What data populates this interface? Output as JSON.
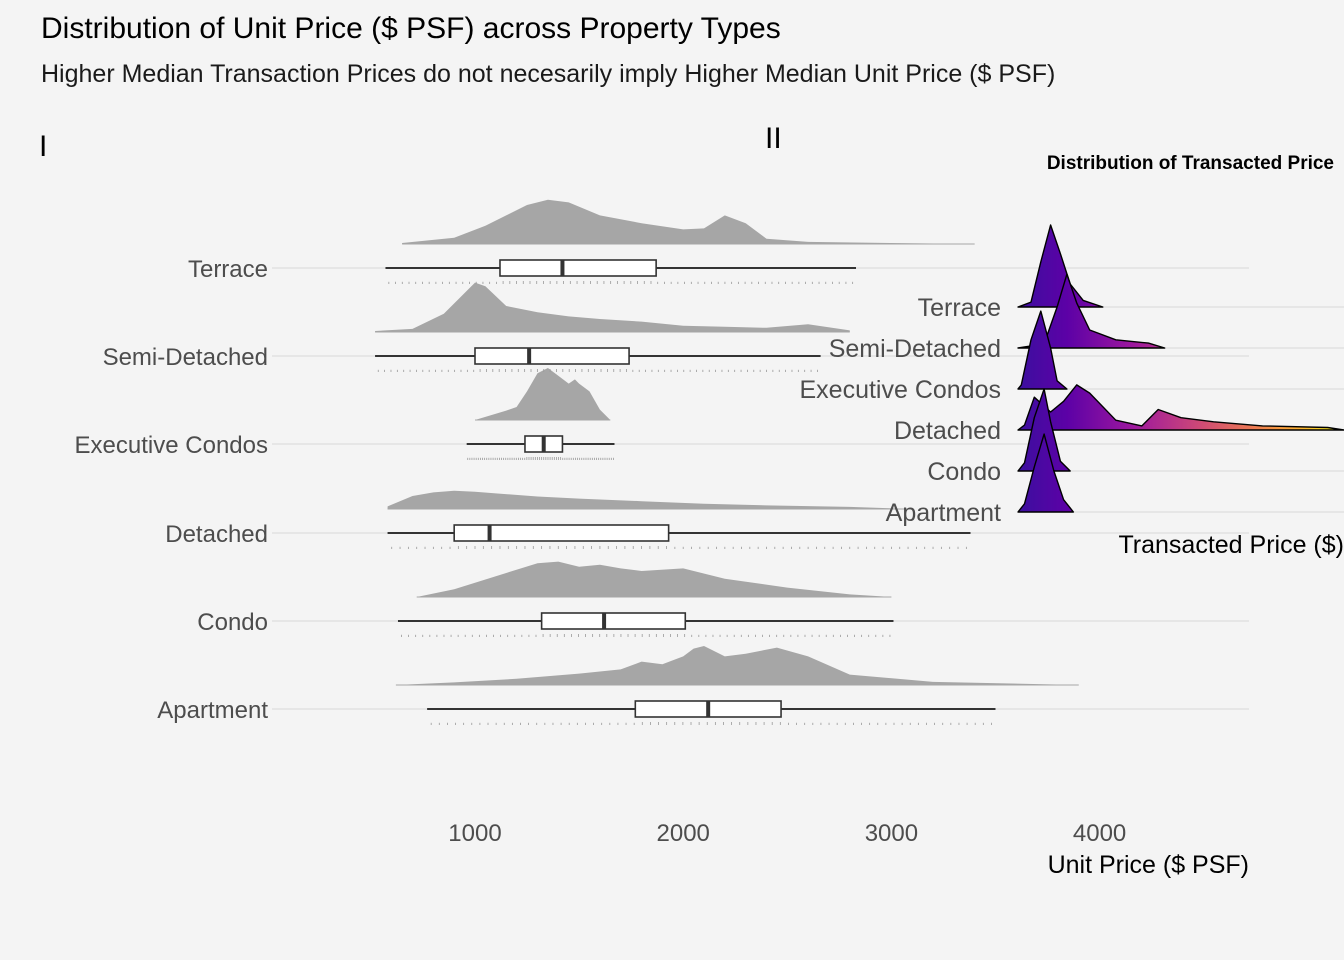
{
  "title": "Distribution of Unit Price ($ PSF) across Property Types",
  "subtitle": "Higher Median Transaction Prices do not necesarily imply Higher Median Unit Price ($ PSF)",
  "panel_tags": [
    "I",
    "II"
  ],
  "colors": {
    "background": "#f4f4f4",
    "density": "#a6a6a6",
    "grid": "#d9d9d9",
    "box": "#333333",
    "ridge_low": "#3b0f9f",
    "ridge_high": "#f0f921"
  },
  "chart_data": [
    {
      "type": "box",
      "title": "",
      "xlabel": "Unit Price ($ PSF)",
      "ylabel": "",
      "xlim": [
        300,
        4700
      ],
      "x_ticks": [
        1000,
        2000,
        3000,
        4000
      ],
      "grid": "horizontal",
      "categories": [
        "Terrace",
        "Semi-Detached",
        "Executive Condos",
        "Detached",
        "Condo",
        "Apartment"
      ],
      "boxes": [
        {
          "category": "Terrace",
          "min": 570,
          "q1": 1120,
          "median": 1420,
          "q3": 1870,
          "max": 2830
        },
        {
          "category": "Semi-Detached",
          "min": 520,
          "q1": 1000,
          "median": 1260,
          "q3": 1740,
          "max": 2660
        },
        {
          "category": "Executive Condos",
          "min": 960,
          "q1": 1240,
          "median": 1330,
          "q3": 1420,
          "max": 1670
        },
        {
          "category": "Detached",
          "min": 580,
          "q1": 900,
          "median": 1070,
          "q3": 1930,
          "max": 3380
        },
        {
          "category": "Condo",
          "min": 630,
          "q1": 1320,
          "median": 1620,
          "q3": 2010,
          "max": 3010
        },
        {
          "category": "Apartment",
          "min": 770,
          "q1": 1770,
          "median": 2120,
          "q3": 2470,
          "max": 3500
        }
      ],
      "densities": [
        {
          "category": "Terrace",
          "x": [
            650,
            900,
            1050,
            1150,
            1250,
            1350,
            1450,
            1600,
            1800,
            2000,
            2100,
            2200,
            2300,
            2400,
            2600,
            3000,
            3400
          ],
          "y": [
            0.02,
            0.12,
            0.35,
            0.55,
            0.75,
            0.85,
            0.8,
            0.55,
            0.4,
            0.28,
            0.3,
            0.55,
            0.4,
            0.1,
            0.04,
            0.02,
            0.0
          ]
        },
        {
          "category": "Semi-Detached",
          "x": [
            520,
            700,
            850,
            950,
            1000,
            1050,
            1150,
            1300,
            1450,
            1600,
            1800,
            2000,
            2200,
            2400,
            2600,
            2800
          ],
          "y": [
            0.02,
            0.06,
            0.35,
            0.75,
            0.95,
            0.88,
            0.5,
            0.38,
            0.3,
            0.25,
            0.2,
            0.12,
            0.1,
            0.08,
            0.15,
            0.03
          ]
        },
        {
          "category": "Executive Condos",
          "x": [
            1000,
            1100,
            1150,
            1200,
            1250,
            1300,
            1350,
            1400,
            1450,
            1480,
            1500,
            1550,
            1600,
            1650
          ],
          "y": [
            0.0,
            0.12,
            0.18,
            0.25,
            0.55,
            0.9,
            1.0,
            0.85,
            0.7,
            0.78,
            0.7,
            0.55,
            0.2,
            0.0
          ]
        },
        {
          "category": "Detached",
          "x": [
            580,
            700,
            800,
            900,
            1000,
            1100,
            1300,
            1500,
            1800,
            2100,
            2400,
            2800,
            3100
          ],
          "y": [
            0.05,
            0.25,
            0.32,
            0.35,
            0.33,
            0.3,
            0.24,
            0.2,
            0.15,
            0.1,
            0.07,
            0.04,
            0.0
          ]
        },
        {
          "category": "Condo",
          "x": [
            720,
            900,
            1100,
            1300,
            1400,
            1500,
            1600,
            1700,
            1800,
            2000,
            2200,
            2500,
            2800,
            3000
          ],
          "y": [
            0.0,
            0.15,
            0.4,
            0.65,
            0.68,
            0.58,
            0.62,
            0.55,
            0.5,
            0.55,
            0.35,
            0.18,
            0.05,
            0.0
          ]
        },
        {
          "category": "Apartment",
          "x": [
            620,
            900,
            1200,
            1500,
            1700,
            1800,
            1900,
            2000,
            2050,
            2100,
            2200,
            2300,
            2450,
            2600,
            2800,
            3200,
            3900
          ],
          "y": [
            0.0,
            0.05,
            0.12,
            0.22,
            0.3,
            0.45,
            0.4,
            0.55,
            0.7,
            0.75,
            0.55,
            0.6,
            0.72,
            0.55,
            0.2,
            0.06,
            0.0
          ]
        }
      ]
    },
    {
      "type": "ridgeline",
      "title": "Distribution of Transacted Price",
      "xlabel": "Transacted Price ($)",
      "ylabel": "",
      "categories": [
        "Terrace",
        "Semi-Detached",
        "Executive Condos",
        "Detached",
        "Condo",
        "Apartment"
      ],
      "color_scale": "plasma",
      "densities": [
        {
          "category": "Terrace",
          "x": [
            0,
            0.04,
            0.07,
            0.1,
            0.13,
            0.16,
            0.2,
            0.26
          ],
          "y": [
            0,
            0.06,
            0.55,
            1.0,
            0.65,
            0.28,
            0.08,
            0
          ]
        },
        {
          "category": "Semi-Detached",
          "x": [
            0,
            0.08,
            0.12,
            0.15,
            0.18,
            0.22,
            0.3,
            0.4,
            0.45
          ],
          "y": [
            0,
            0.05,
            0.5,
            0.9,
            0.55,
            0.22,
            0.1,
            0.06,
            0
          ]
        },
        {
          "category": "Executive Condos",
          "x": [
            0,
            0.01,
            0.04,
            0.07,
            0.1,
            0.12,
            0.15
          ],
          "y": [
            0,
            0.05,
            0.6,
            0.95,
            0.5,
            0.1,
            0
          ]
        },
        {
          "category": "Detached",
          "x": [
            0,
            0.02,
            0.05,
            0.1,
            0.14,
            0.18,
            0.22,
            0.3,
            0.38,
            0.43,
            0.5,
            0.6,
            0.75,
            0.95,
            1.0
          ],
          "y": [
            0,
            0.06,
            0.4,
            0.22,
            0.35,
            0.55,
            0.45,
            0.12,
            0.05,
            0.25,
            0.15,
            0.1,
            0.05,
            0.03,
            0.0
          ]
        },
        {
          "category": "Condo",
          "x": [
            0,
            0.02,
            0.05,
            0.08,
            0.1,
            0.13,
            0.16
          ],
          "y": [
            0,
            0.1,
            0.65,
            1.0,
            0.6,
            0.12,
            0
          ]
        },
        {
          "category": "Apartment",
          "x": [
            0,
            0.02,
            0.05,
            0.08,
            0.11,
            0.14,
            0.17
          ],
          "y": [
            0,
            0.1,
            0.55,
            0.95,
            0.5,
            0.15,
            0
          ]
        }
      ]
    }
  ]
}
